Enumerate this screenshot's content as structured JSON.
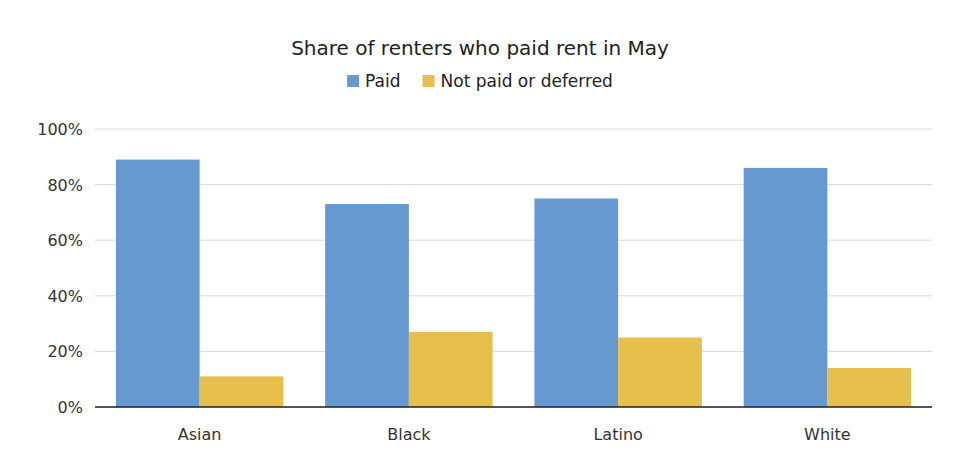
{
  "chart_data": {
    "type": "bar",
    "title": "Share of renters who paid rent in May",
    "categories": [
      "Asian",
      "Black",
      "Latino",
      "White"
    ],
    "series": [
      {
        "name": "Paid",
        "color": "#6699cf",
        "values": [
          89,
          73,
          75,
          86
        ]
      },
      {
        "name": "Not paid or deferred",
        "color": "#e6bf4c",
        "values": [
          11,
          27,
          25,
          14
        ]
      }
    ],
    "ylim": [
      0,
      100
    ],
    "yticks": [
      {
        "value": 0,
        "label": "0%"
      },
      {
        "value": 20,
        "label": "20%"
      },
      {
        "value": 40,
        "label": "40%"
      },
      {
        "value": 60,
        "label": "60%"
      },
      {
        "value": 80,
        "label": "80%"
      },
      {
        "value": 100,
        "label": "100%"
      }
    ],
    "grid": true,
    "legend": "top"
  }
}
